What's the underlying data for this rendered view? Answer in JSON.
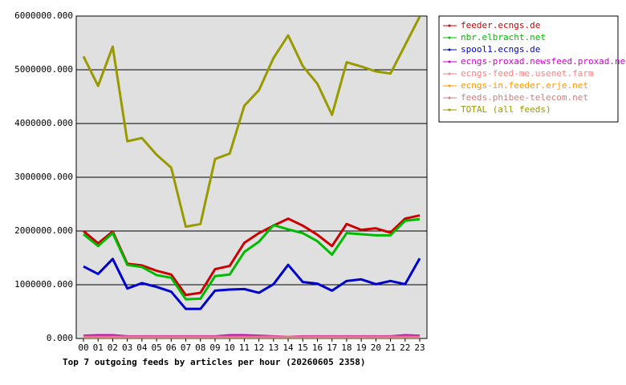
{
  "chart_data": {
    "type": "line",
    "title": "Top 7 outgoing feeds by articles per hour (20260605 2358)",
    "categories": [
      "00",
      "01",
      "02",
      "03",
      "04",
      "05",
      "06",
      "07",
      "08",
      "09",
      "10",
      "11",
      "12",
      "13",
      "14",
      "15",
      "16",
      "17",
      "18",
      "19",
      "20",
      "21",
      "22",
      "23"
    ],
    "ylim": [
      0,
      6000000
    ],
    "yticks": [
      {
        "value": 0,
        "label": "0.000"
      },
      {
        "value": 1000000,
        "label": "1000000.000"
      },
      {
        "value": 2000000,
        "label": "2000000.000"
      },
      {
        "value": 3000000,
        "label": "3000000.000"
      },
      {
        "value": 4000000,
        "label": "4000000.000"
      },
      {
        "value": 5000000,
        "label": "5000000.000"
      },
      {
        "value": 6000000,
        "label": "6000000.000"
      }
    ],
    "grid": true,
    "legend": "right",
    "background": "#e0e0e0",
    "series": [
      {
        "name": "feeder.ecngs.de",
        "color": "#cc0000",
        "values": [
          2000000,
          1770000,
          1990000,
          1390000,
          1360000,
          1260000,
          1190000,
          810000,
          850000,
          1290000,
          1350000,
          1780000,
          1960000,
          2100000,
          2230000,
          2100000,
          1930000,
          1720000,
          2130000,
          2020000,
          2050000,
          1970000,
          2230000,
          2290000
        ]
      },
      {
        "name": "nbr.elbracht.net",
        "color": "#00bb00",
        "values": [
          1940000,
          1720000,
          1960000,
          1370000,
          1330000,
          1180000,
          1130000,
          730000,
          740000,
          1160000,
          1190000,
          1610000,
          1800000,
          2110000,
          2030000,
          1960000,
          1810000,
          1560000,
          1960000,
          1940000,
          1920000,
          1920000,
          2190000,
          2220000
        ]
      },
      {
        "name": "spool1.ecngs.de",
        "color": "#0000cc",
        "values": [
          1340000,
          1200000,
          1480000,
          930000,
          1030000,
          960000,
          870000,
          550000,
          550000,
          890000,
          910000,
          920000,
          850000,
          1010000,
          1370000,
          1050000,
          1020000,
          890000,
          1070000,
          1100000,
          1010000,
          1070000,
          1010000,
          1490000
        ]
      },
      {
        "name": "ecngs-proxad.newsfeed.proxad.net",
        "color": "#cc00cc",
        "values": [
          50000,
          60000,
          60000,
          40000,
          40000,
          40000,
          40000,
          40000,
          40000,
          40000,
          60000,
          60000,
          50000,
          40000,
          30000,
          40000,
          40000,
          40000,
          40000,
          40000,
          40000,
          40000,
          60000,
          50000
        ]
      },
      {
        "name": "ecngs-feed-me.usenet.farm",
        "color": "#ff8080",
        "values": [
          30000,
          30000,
          30000,
          30000,
          30000,
          30000,
          30000,
          30000,
          30000,
          30000,
          30000,
          30000,
          30000,
          30000,
          30000,
          30000,
          30000,
          30000,
          30000,
          30000,
          30000,
          30000,
          30000,
          30000
        ]
      },
      {
        "name": "ecngs-in.feeder.erje.net",
        "color": "#ff9900",
        "values": [
          20000,
          20000,
          20000,
          20000,
          20000,
          20000,
          20000,
          20000,
          20000,
          20000,
          20000,
          20000,
          20000,
          20000,
          20000,
          20000,
          20000,
          20000,
          20000,
          20000,
          20000,
          20000,
          20000,
          20000
        ]
      },
      {
        "name": "feeds.phibee-telecom.net",
        "color": "#cc8080",
        "values": [
          25000,
          25000,
          25000,
          25000,
          25000,
          25000,
          25000,
          25000,
          25000,
          25000,
          25000,
          25000,
          25000,
          25000,
          25000,
          25000,
          25000,
          25000,
          25000,
          25000,
          25000,
          25000,
          25000,
          25000
        ]
      },
      {
        "name": "TOTAL (all feeds)",
        "color": "#999900",
        "values": [
          5250000,
          4700000,
          5430000,
          3670000,
          3730000,
          3420000,
          3180000,
          2080000,
          2130000,
          3340000,
          3440000,
          4330000,
          4620000,
          5220000,
          5640000,
          5070000,
          4740000,
          4160000,
          5140000,
          5060000,
          4970000,
          4930000,
          5460000,
          5990000
        ]
      }
    ]
  }
}
